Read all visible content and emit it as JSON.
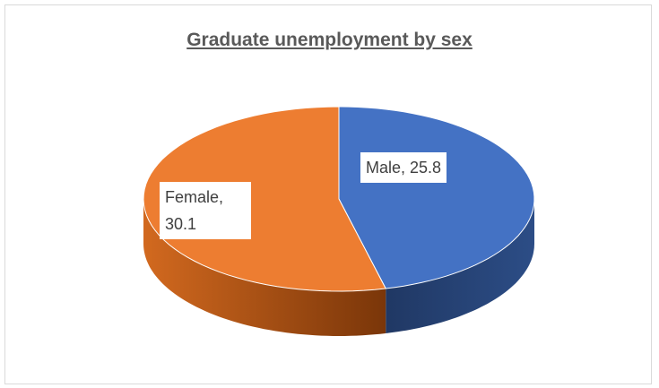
{
  "chart_data": {
    "type": "pie",
    "title": "Graduate unemployment by sex",
    "categories": [
      "Male",
      "Female"
    ],
    "values": [
      25.8,
      30.1
    ],
    "value_labels": [
      "Male, 25.8",
      "Female, 30.1"
    ],
    "colors": [
      "#4472c4",
      "#ed7d31"
    ]
  }
}
